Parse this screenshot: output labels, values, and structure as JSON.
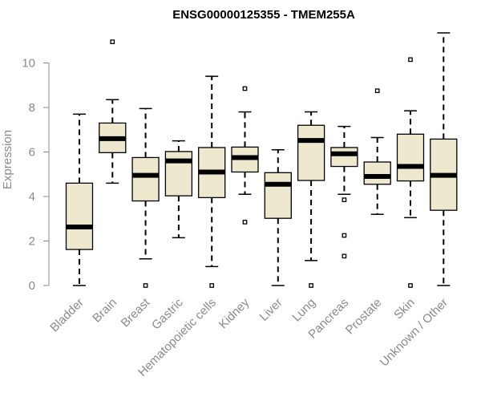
{
  "chart_data": {
    "type": "boxplot",
    "title": "ENSG00000125355 - TMEM255A",
    "xlabel": "",
    "ylabel": "Expression",
    "ylim": [
      0,
      11.4
    ],
    "yticks": [
      0,
      2,
      4,
      6,
      8,
      10
    ],
    "categories": [
      "Bladder",
      "Brain",
      "Breast",
      "Gastric",
      "Hematopoietic cells",
      "Kidney",
      "Liver",
      "Lung",
      "Pancreas",
      "Prostate",
      "Skin",
      "Unknown / Other"
    ],
    "boxes": [
      {
        "category": "Bladder",
        "min": 0,
        "q1": 1.62,
        "median": 2.63,
        "q3": 4.6,
        "max": 7.7,
        "outliers": []
      },
      {
        "category": "Brain",
        "min": 4.6,
        "q1": 5.97,
        "median": 6.6,
        "q3": 7.3,
        "max": 8.35,
        "outliers": [
          10.95
        ]
      },
      {
        "category": "Breast",
        "min": 1.2,
        "q1": 3.8,
        "median": 4.95,
        "q3": 5.75,
        "max": 7.95,
        "outliers": [
          0
        ]
      },
      {
        "category": "Gastric",
        "min": 2.15,
        "q1": 4.03,
        "median": 5.6,
        "q3": 6.02,
        "max": 6.5,
        "outliers": []
      },
      {
        "category": "Hematopoietic cells",
        "min": 0.85,
        "q1": 3.95,
        "median": 5.1,
        "q3": 6.2,
        "max": 9.4,
        "outliers": [
          0
        ]
      },
      {
        "category": "Kidney",
        "min": 4.1,
        "q1": 5.1,
        "median": 5.75,
        "q3": 6.22,
        "max": 7.8,
        "outliers": [
          8.85,
          2.85
        ]
      },
      {
        "category": "Liver",
        "min": 0,
        "q1": 3.02,
        "median": 4.55,
        "q3": 5.07,
        "max": 6.1,
        "outliers": []
      },
      {
        "category": "Lung",
        "min": 1.12,
        "q1": 4.72,
        "median": 6.52,
        "q3": 7.2,
        "max": 7.8,
        "outliers": [
          0
        ]
      },
      {
        "category": "Pancreas",
        "min": 4.1,
        "q1": 5.35,
        "median": 5.92,
        "q3": 6.2,
        "max": 7.15,
        "outliers": [
          3.85,
          2.25,
          1.32
        ]
      },
      {
        "category": "Prostate",
        "min": 3.2,
        "q1": 4.55,
        "median": 4.9,
        "q3": 5.55,
        "max": 6.65,
        "outliers": [
          8.75
        ]
      },
      {
        "category": "Skin",
        "min": 3.05,
        "q1": 4.7,
        "median": 5.35,
        "q3": 6.8,
        "max": 7.85,
        "outliers": [
          10.15,
          0
        ]
      },
      {
        "category": "Unknown / Other",
        "min": 0,
        "q1": 3.38,
        "median": 4.95,
        "q3": 6.58,
        "max": 11.35,
        "outliers": []
      }
    ]
  }
}
